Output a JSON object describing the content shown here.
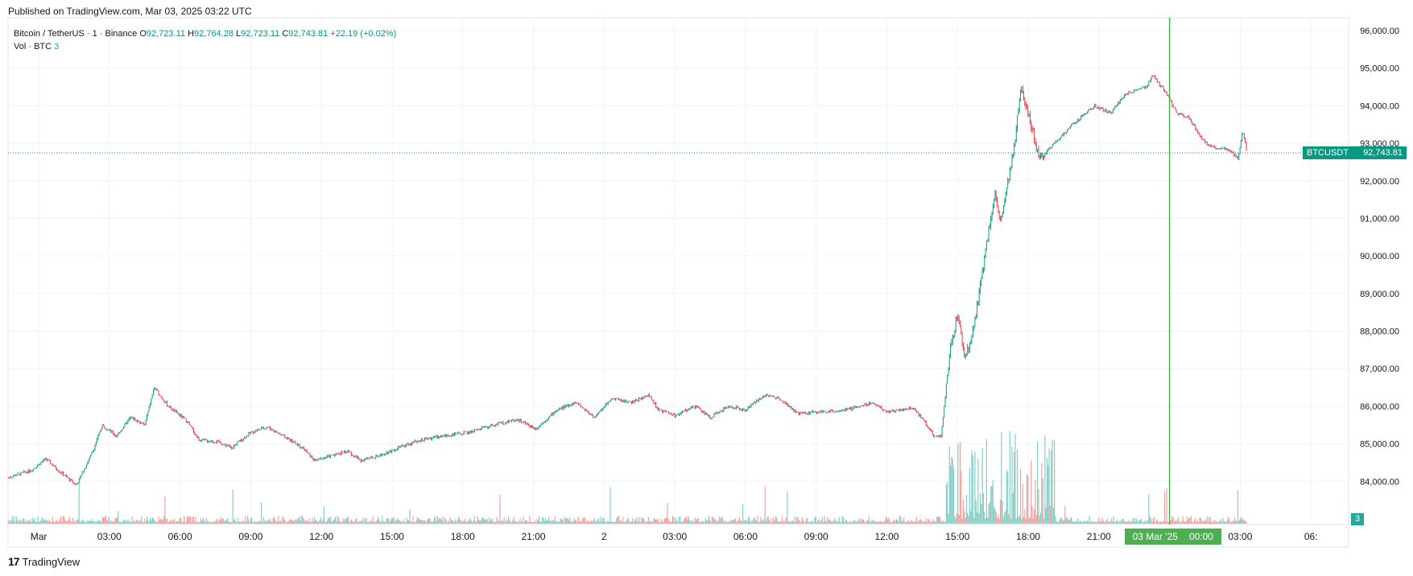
{
  "header": {
    "published": "Published on TradingView.com, Mar 03, 2025 03:22 UTC"
  },
  "legend": {
    "symbol": "Bitcoin / TetherUS · 1 · Binance",
    "o_label": "O",
    "o_value": "92,723.11",
    "h_label": "H",
    "h_value": "92,764.28",
    "l_label": "L",
    "l_value": "92,723.11",
    "c_label": "C",
    "c_value": "92,743.81",
    "change": "+22.19 (+0.02%)",
    "vol_label": "Vol · BTC",
    "vol_value": "3"
  },
  "price_label": {
    "symbol": "BTCUSDT",
    "value": "92,743.81"
  },
  "volume_label": "3",
  "crosshair": {
    "date": "03 Mar '25",
    "time": "00:00"
  },
  "footer": {
    "logo": "17",
    "brand": "TradingView"
  },
  "colors": {
    "up": "#089981",
    "down": "#f23645",
    "vol_up": "#26a69a",
    "vol_down": "#ef5350",
    "crosshair": "#4caf50",
    "grid": "#f0f3fa"
  },
  "chart_data": {
    "type": "candlestick",
    "title": "Bitcoin / TetherUS · 1 · Binance",
    "ylim": [
      83000,
      96000
    ],
    "y_ticks": [
      84000,
      85000,
      86000,
      87000,
      88000,
      89000,
      90000,
      91000,
      92000,
      93000,
      94000,
      95000,
      96000
    ],
    "y_tick_labels": [
      "84,000.00",
      "85,000.00",
      "86,000.00",
      "87,000.00",
      "88,000.00",
      "89,000.00",
      "90,000.00",
      "91,000.00",
      "92,000.00",
      "93,000.00",
      "94,000.00",
      "95,000.00",
      "96,000.00"
    ],
    "x_range_hours": [
      0,
      54
    ],
    "x_ticks": [
      {
        "t": 1.3,
        "label": "Mar"
      },
      {
        "t": 4.3,
        "label": "03:00"
      },
      {
        "t": 7.3,
        "label": "06:00"
      },
      {
        "t": 10.3,
        "label": "09:00"
      },
      {
        "t": 13.3,
        "label": "12:00"
      },
      {
        "t": 16.3,
        "label": "15:00"
      },
      {
        "t": 19.3,
        "label": "18:00"
      },
      {
        "t": 22.3,
        "label": "21:00"
      },
      {
        "t": 25.3,
        "label": "2"
      },
      {
        "t": 28.3,
        "label": "03:00"
      },
      {
        "t": 31.3,
        "label": "06:00"
      },
      {
        "t": 34.3,
        "label": "09:00"
      },
      {
        "t": 37.3,
        "label": "12:00"
      },
      {
        "t": 40.3,
        "label": "15:00"
      },
      {
        "t": 43.3,
        "label": "18:00"
      },
      {
        "t": 46.3,
        "label": "21:00"
      },
      {
        "t": 49.3,
        "label": "00:00"
      },
      {
        "t": 52.3,
        "label": "03:00"
      },
      {
        "t": 55.3,
        "label": "06:"
      }
    ],
    "last_price": 92743.81,
    "crosshair_t": 49.3,
    "end_t": 52.6,
    "path": [
      [
        0,
        84100
      ],
      [
        1,
        84300
      ],
      [
        1.6,
        84600
      ],
      [
        2.3,
        84200
      ],
      [
        2.9,
        83900
      ],
      [
        3.6,
        84800
      ],
      [
        4.0,
        85500
      ],
      [
        4.6,
        85200
      ],
      [
        5.2,
        85700
      ],
      [
        5.8,
        85500
      ],
      [
        6.2,
        86500
      ],
      [
        6.8,
        86000
      ],
      [
        7.6,
        85600
      ],
      [
        8.1,
        85100
      ],
      [
        8.9,
        85050
      ],
      [
        9.5,
        84900
      ],
      [
        10.3,
        85300
      ],
      [
        11.0,
        85450
      ],
      [
        11.7,
        85200
      ],
      [
        12.5,
        84900
      ],
      [
        13.0,
        84550
      ],
      [
        13.8,
        84700
      ],
      [
        14.4,
        84800
      ],
      [
        15.0,
        84550
      ],
      [
        15.8,
        84700
      ],
      [
        16.6,
        84900
      ],
      [
        17.5,
        85100
      ],
      [
        18.4,
        85200
      ],
      [
        19.5,
        85300
      ],
      [
        20.6,
        85500
      ],
      [
        21.6,
        85650
      ],
      [
        22.4,
        85400
      ],
      [
        23.3,
        85900
      ],
      [
        24.1,
        86100
      ],
      [
        24.9,
        85700
      ],
      [
        25.6,
        86200
      ],
      [
        26.5,
        86100
      ],
      [
        27.2,
        86300
      ],
      [
        27.6,
        85900
      ],
      [
        28.3,
        85750
      ],
      [
        29.2,
        86000
      ],
      [
        29.8,
        85700
      ],
      [
        30.6,
        86000
      ],
      [
        31.3,
        85900
      ],
      [
        32.1,
        86300
      ],
      [
        32.8,
        86200
      ],
      [
        33.5,
        85800
      ],
      [
        34.5,
        85850
      ],
      [
        35.6,
        85900
      ],
      [
        36.7,
        86100
      ],
      [
        37.3,
        85850
      ],
      [
        38.4,
        85950
      ],
      [
        38.9,
        85600
      ],
      [
        39.3,
        85200
      ],
      [
        39.6,
        85200
      ],
      [
        40.0,
        87500
      ],
      [
        40.3,
        88500
      ],
      [
        40.6,
        87300
      ],
      [
        40.9,
        87800
      ],
      [
        41.2,
        88900
      ],
      [
        41.6,
        90600
      ],
      [
        41.9,
        91700
      ],
      [
        42.1,
        90800
      ],
      [
        42.4,
        91800
      ],
      [
        42.7,
        92800
      ],
      [
        43.0,
        94600
      ],
      [
        43.4,
        93500
      ],
      [
        43.8,
        92600
      ],
      [
        44.4,
        93000
      ],
      [
        45.2,
        93500
      ],
      [
        46.1,
        94000
      ],
      [
        46.8,
        93800
      ],
      [
        47.4,
        94300
      ],
      [
        48.3,
        94500
      ],
      [
        48.6,
        94800
      ],
      [
        49.2,
        94300
      ],
      [
        49.6,
        93800
      ],
      [
        50.1,
        93700
      ],
      [
        50.6,
        93200
      ],
      [
        51.0,
        92900
      ],
      [
        51.8,
        92850
      ],
      [
        52.2,
        92600
      ],
      [
        52.4,
        93300
      ],
      [
        52.6,
        92743
      ]
    ]
  }
}
